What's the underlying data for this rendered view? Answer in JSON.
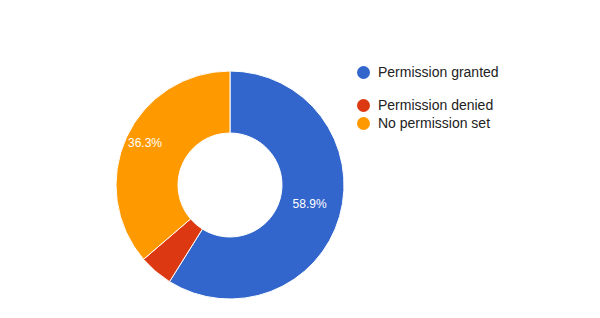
{
  "chart_data": {
    "type": "donut",
    "categories": [
      "Permission granted",
      "Permission denied",
      "No permission set"
    ],
    "values": [
      58.9,
      4.8,
      36.3
    ],
    "value_labels": [
      "58.9%",
      null,
      "36.3%"
    ],
    "colors": [
      "#3366cc",
      "#dc3912",
      "#ff9900"
    ],
    "data_labels": true,
    "legend": "right"
  }
}
